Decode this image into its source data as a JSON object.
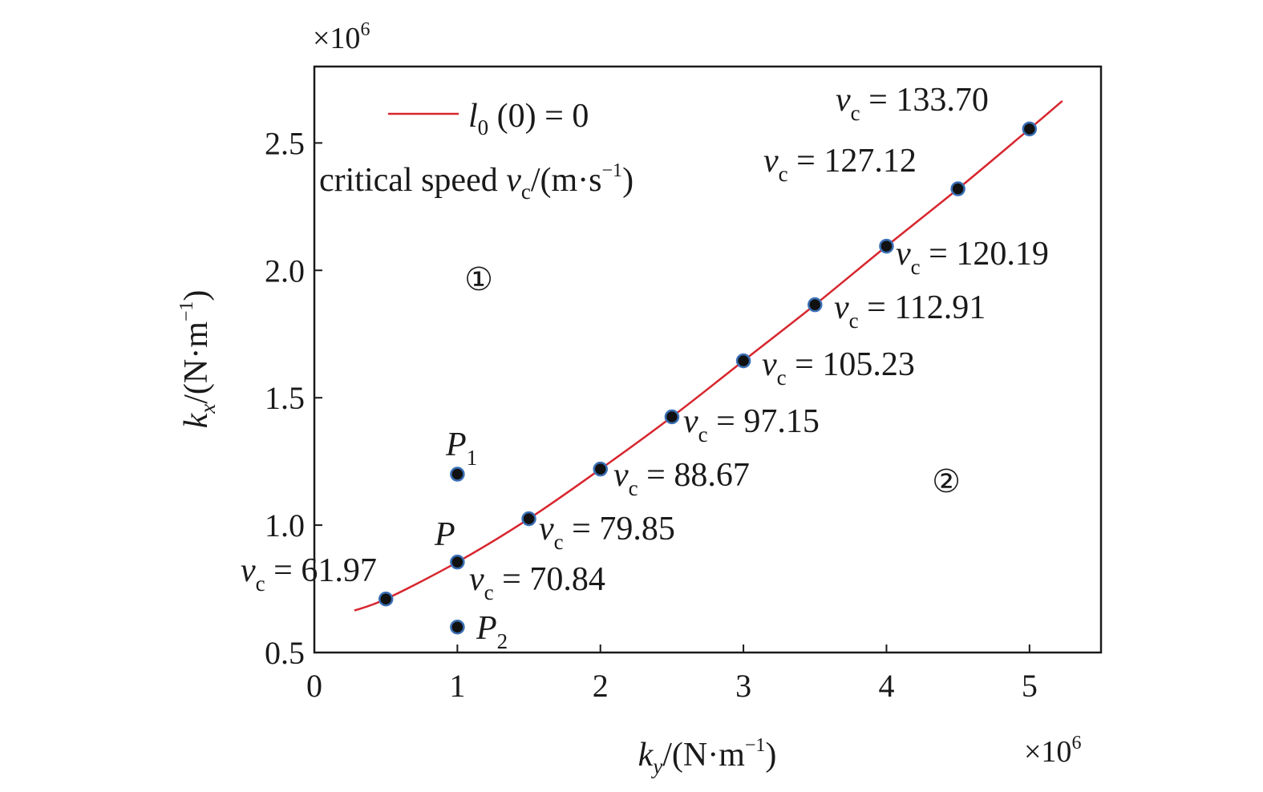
{
  "chart_data": {
    "type": "scatter",
    "title": "",
    "xlabel": {
      "symbol": "k",
      "sub": "y",
      "unit_pre": "/(N·m",
      "sup": "−1",
      "unit_post": ")"
    },
    "ylabel": {
      "symbol": "k",
      "sub": "x",
      "unit_pre": "/(N·m",
      "sup": "−1",
      "unit_post": ")"
    },
    "x_multiplier": {
      "base": "×10",
      "exp": "6"
    },
    "y_multiplier": {
      "base": "×10",
      "exp": "6"
    },
    "xlim": [
      0,
      5.5
    ],
    "ylim": [
      0.5,
      2.8
    ],
    "x_ticks": [
      "0",
      "1",
      "2",
      "3",
      "4",
      "5"
    ],
    "x_tick_values": [
      0,
      1,
      2,
      3,
      4,
      5
    ],
    "y_ticks": [
      "0.5",
      "1.0",
      "1.5",
      "2.0",
      "2.5"
    ],
    "y_tick_values": [
      0.5,
      1.0,
      1.5,
      2.0,
      2.5
    ],
    "grid": false,
    "legend": {
      "placement": "top-left",
      "line_label": {
        "symbol": "l",
        "sub": "0",
        "rest": " (0) = 0"
      },
      "note": {
        "pre": "critical speed ",
        "symbol": "v",
        "sub": "c",
        "unit_pre": "/(m·s",
        "sup": "−1",
        "unit_post": ")"
      }
    },
    "curve": {
      "name": "l0 (0) = 0",
      "color": "#d7262e",
      "x": [
        0.28,
        0.5,
        1.0,
        1.5,
        2.0,
        2.5,
        3.0,
        3.5,
        4.0,
        4.5,
        5.0,
        5.23
      ],
      "y": [
        0.665,
        0.71,
        0.855,
        1.025,
        1.22,
        1.425,
        1.645,
        1.865,
        2.095,
        2.32,
        2.555,
        2.665
      ]
    },
    "critical_points": [
      {
        "x": 0.5,
        "y": 0.71,
        "vc": "61.97"
      },
      {
        "x": 1.0,
        "y": 0.855,
        "vc": "70.84"
      },
      {
        "x": 1.5,
        "y": 1.025,
        "vc": "79.85"
      },
      {
        "x": 2.0,
        "y": 1.22,
        "vc": "88.67"
      },
      {
        "x": 2.5,
        "y": 1.425,
        "vc": "97.15"
      },
      {
        "x": 3.0,
        "y": 1.645,
        "vc": "105.23"
      },
      {
        "x": 3.5,
        "y": 1.865,
        "vc": "112.91"
      },
      {
        "x": 4.0,
        "y": 2.095,
        "vc": "120.19"
      },
      {
        "x": 4.5,
        "y": 2.32,
        "vc": "127.12"
      },
      {
        "x": 5.0,
        "y": 2.555,
        "vc": "133.70"
      }
    ],
    "vc_symbol": "v",
    "vc_sub": "c",
    "vc_eq": " = ",
    "labeled_points": [
      {
        "label": "P",
        "sub": "",
        "x": 1.0,
        "y": 0.855
      },
      {
        "label": "P",
        "sub": "1",
        "x": 1.0,
        "y": 1.2
      },
      {
        "label": "P",
        "sub": "2",
        "x": 1.0,
        "y": 0.6
      }
    ],
    "regions": [
      "①",
      "②"
    ],
    "marker": {
      "fill": "#111111",
      "edge": "#3a6fb5"
    }
  }
}
